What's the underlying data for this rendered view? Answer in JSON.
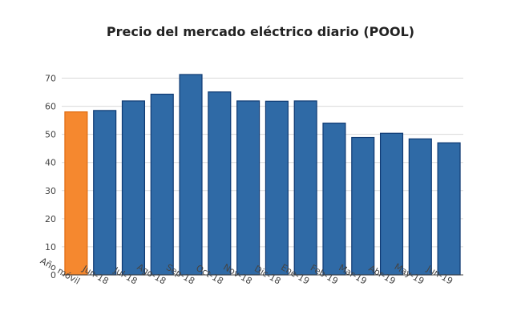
{
  "chart_data": {
    "type": "bar",
    "title": "Precio del mercado eléctrico diario (POOL)",
    "categories": [
      "Año móvil",
      "Jun-18",
      "Jul-18",
      "Ago-18",
      "Sep-18",
      "Oct-18",
      "Nov-18",
      "Dic-18",
      "Ene-19",
      "Feb-19",
      "Mar-19",
      "Abr-19",
      "May-19",
      "Jun-19"
    ],
    "values": [
      58.0,
      58.5,
      61.9,
      64.3,
      71.3,
      65.1,
      61.9,
      61.8,
      61.9,
      54.0,
      48.9,
      50.4,
      48.4,
      47.0
    ],
    "highlight_index": 0,
    "ylim": [
      0,
      75
    ],
    "yticks": [
      0,
      10,
      20,
      30,
      40,
      50,
      60,
      70
    ],
    "grid": true,
    "colors": {
      "highlight_fill": "#f5882f",
      "highlight_stroke": "#e06b10",
      "bar_fill": "#2f6aa6",
      "bar_stroke": "#0f3a73",
      "grid": "#d9d9d9",
      "axis": "#444444"
    }
  }
}
